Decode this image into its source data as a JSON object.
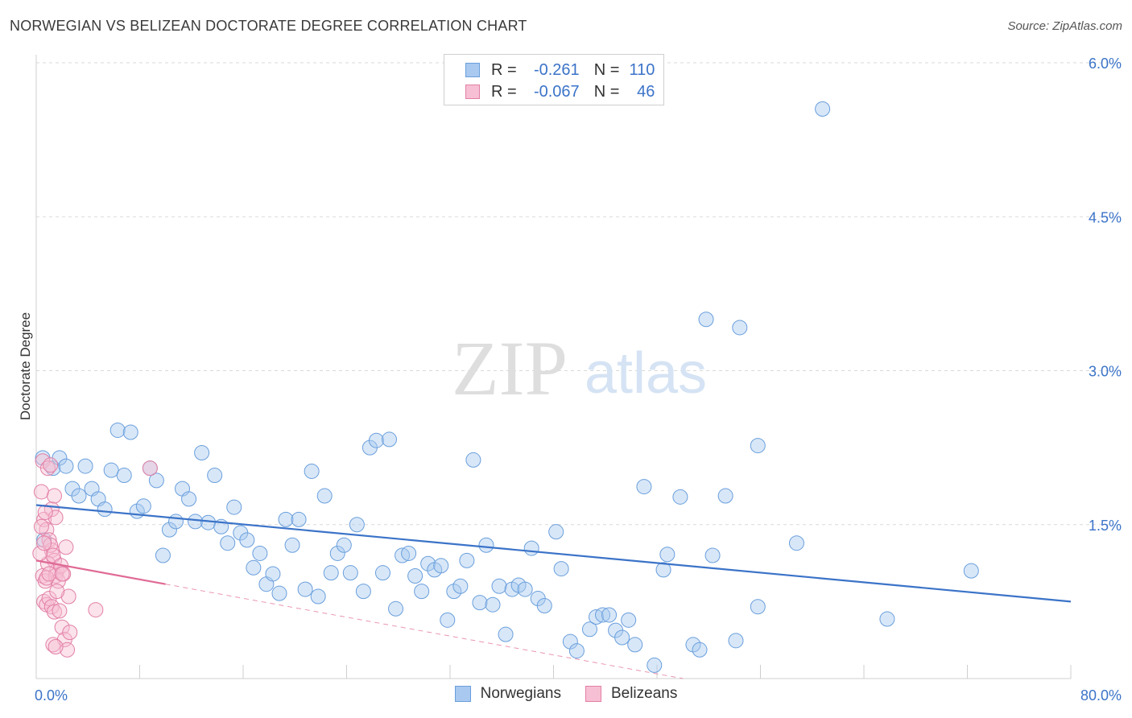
{
  "title": "NORWEGIAN VS BELIZEAN DOCTORATE DEGREE CORRELATION CHART",
  "source": "Source: ZipAtlas.com",
  "watermark": {
    "zip": "ZIP",
    "atlas": "atlas"
  },
  "legend": {
    "rows": [
      {
        "r_label": "R =",
        "r_value": "-0.261",
        "n_label": "N =",
        "n_value": "110",
        "color": "#a9c9f0",
        "border": "#6a9fdc"
      },
      {
        "r_label": "R =",
        "r_value": "-0.067",
        "n_label": "N =",
        "n_value": "46",
        "color": "#f7bfd3",
        "border": "#e27fa5"
      }
    ]
  },
  "bottom_legend": [
    {
      "label": "Norwegians",
      "color": "#a9c9f0",
      "border": "#6a9fdc"
    },
    {
      "label": "Belizeans",
      "color": "#f7bfd3",
      "border": "#e27fa5"
    }
  ],
  "colors": {
    "blue": "#3b73c8",
    "pink": "#e06a95",
    "grid": "#d9d9d9",
    "tick_text": "#3b73c8"
  },
  "chart_data": {
    "type": "scatter",
    "title": "NORWEGIAN VS BELIZEAN DOCTORATE DEGREE CORRELATION CHART",
    "xlabel": "",
    "ylabel": "Doctorate Degree",
    "xlim": [
      0,
      80
    ],
    "ylim": [
      0,
      6.0
    ],
    "x_tick_labels": [
      "0.0%",
      "80.0%"
    ],
    "y_tick_labels": [
      "1.5%",
      "3.0%",
      "4.5%",
      "6.0%"
    ],
    "y_ticks": [
      1.5,
      3.0,
      4.5,
      6.0
    ],
    "grid": true,
    "series": [
      {
        "name": "Norwegians",
        "points": [
          [
            0.5,
            2.15
          ],
          [
            1.3,
            2.05
          ],
          [
            1.8,
            2.15
          ],
          [
            2.3,
            2.07
          ],
          [
            2.8,
            1.85
          ],
          [
            3.3,
            1.78
          ],
          [
            3.8,
            2.07
          ],
          [
            4.3,
            1.85
          ],
          [
            4.8,
            1.75
          ],
          [
            5.3,
            1.65
          ],
          [
            5.8,
            2.03
          ],
          [
            6.3,
            2.42
          ],
          [
            6.8,
            1.98
          ],
          [
            7.3,
            2.4
          ],
          [
            7.8,
            1.63
          ],
          [
            8.3,
            1.68
          ],
          [
            8.8,
            2.05
          ],
          [
            9.3,
            1.93
          ],
          [
            9.8,
            1.2
          ],
          [
            10.3,
            1.45
          ],
          [
            10.8,
            1.53
          ],
          [
            11.3,
            1.85
          ],
          [
            11.8,
            1.75
          ],
          [
            12.3,
            1.53
          ],
          [
            12.8,
            2.2
          ],
          [
            13.3,
            1.52
          ],
          [
            13.8,
            1.98
          ],
          [
            14.3,
            1.48
          ],
          [
            14.8,
            1.32
          ],
          [
            15.3,
            1.67
          ],
          [
            15.8,
            1.42
          ],
          [
            16.3,
            1.35
          ],
          [
            16.8,
            1.08
          ],
          [
            17.3,
            1.22
          ],
          [
            17.8,
            0.92
          ],
          [
            18.3,
            1.02
          ],
          [
            18.8,
            0.83
          ],
          [
            19.3,
            1.55
          ],
          [
            19.8,
            1.3
          ],
          [
            20.3,
            1.55
          ],
          [
            20.8,
            0.87
          ],
          [
            21.3,
            2.02
          ],
          [
            21.8,
            0.8
          ],
          [
            22.3,
            1.78
          ],
          [
            22.8,
            1.03
          ],
          [
            23.3,
            1.22
          ],
          [
            23.8,
            1.3
          ],
          [
            24.3,
            1.03
          ],
          [
            24.8,
            1.5
          ],
          [
            25.3,
            0.85
          ],
          [
            25.8,
            2.25
          ],
          [
            26.3,
            2.32
          ],
          [
            26.8,
            1.03
          ],
          [
            27.3,
            2.33
          ],
          [
            27.8,
            0.68
          ],
          [
            28.3,
            1.2
          ],
          [
            28.8,
            1.22
          ],
          [
            29.3,
            1.0
          ],
          [
            29.8,
            0.85
          ],
          [
            30.3,
            1.12
          ],
          [
            30.8,
            1.06
          ],
          [
            31.3,
            1.1
          ],
          [
            31.8,
            0.57
          ],
          [
            32.3,
            0.85
          ],
          [
            32.8,
            0.9
          ],
          [
            33.3,
            1.15
          ],
          [
            33.8,
            2.13
          ],
          [
            34.3,
            0.74
          ],
          [
            34.8,
            1.3
          ],
          [
            35.3,
            0.72
          ],
          [
            35.8,
            0.9
          ],
          [
            36.3,
            0.43
          ],
          [
            36.8,
            0.87
          ],
          [
            37.3,
            0.91
          ],
          [
            37.8,
            0.87
          ],
          [
            38.3,
            1.27
          ],
          [
            38.8,
            0.78
          ],
          [
            39.3,
            0.71
          ],
          [
            40.2,
            1.43
          ],
          [
            40.6,
            1.07
          ],
          [
            41.3,
            0.36
          ],
          [
            41.8,
            0.27
          ],
          [
            42.8,
            0.48
          ],
          [
            43.3,
            0.6
          ],
          [
            43.8,
            0.62
          ],
          [
            44.3,
            0.62
          ],
          [
            44.8,
            0.47
          ],
          [
            45.3,
            0.4
          ],
          [
            45.8,
            0.57
          ],
          [
            46.3,
            0.33
          ],
          [
            47.0,
            1.87
          ],
          [
            47.8,
            0.13
          ],
          [
            48.5,
            1.06
          ],
          [
            48.8,
            1.21
          ],
          [
            49.8,
            1.77
          ],
          [
            50.8,
            0.33
          ],
          [
            51.3,
            0.28
          ],
          [
            51.8,
            3.5
          ],
          [
            52.3,
            1.2
          ],
          [
            53.3,
            1.78
          ],
          [
            54.1,
            0.37
          ],
          [
            54.4,
            3.42
          ],
          [
            55.8,
            0.7
          ],
          [
            55.8,
            2.27
          ],
          [
            58.8,
            1.32
          ],
          [
            60.8,
            5.55
          ],
          [
            65.8,
            0.58
          ],
          [
            72.3,
            1.05
          ],
          [
            0.6,
            1.35
          ]
        ]
      },
      {
        "name": "Belizeans",
        "points": [
          [
            0.4,
            1.82
          ],
          [
            0.6,
            1.55
          ],
          [
            0.8,
            1.45
          ],
          [
            1.0,
            1.35
          ],
          [
            1.2,
            1.25
          ],
          [
            1.4,
            1.15
          ],
          [
            1.6,
            1.05
          ],
          [
            0.5,
            1.0
          ],
          [
            0.7,
            0.95
          ],
          [
            0.9,
            1.12
          ],
          [
            1.1,
            1.3
          ],
          [
            1.3,
            1.2
          ],
          [
            1.5,
            1.0
          ],
          [
            1.7,
            0.95
          ],
          [
            1.9,
            1.1
          ],
          [
            2.1,
            1.02
          ],
          [
            2.3,
            1.28
          ],
          [
            2.5,
            0.8
          ],
          [
            0.6,
            0.75
          ],
          [
            0.8,
            0.72
          ],
          [
            1.0,
            0.78
          ],
          [
            1.2,
            0.7
          ],
          [
            1.4,
            0.65
          ],
          [
            1.6,
            0.85
          ],
          [
            1.8,
            0.66
          ],
          [
            2.0,
            0.5
          ],
          [
            2.2,
            0.38
          ],
          [
            2.4,
            0.28
          ],
          [
            2.6,
            0.45
          ],
          [
            1.3,
            0.33
          ],
          [
            1.5,
            0.31
          ],
          [
            1.2,
            1.65
          ],
          [
            1.5,
            1.57
          ],
          [
            1.4,
            1.78
          ],
          [
            0.5,
            2.12
          ],
          [
            0.9,
            2.05
          ],
          [
            1.1,
            2.08
          ],
          [
            0.7,
            1.62
          ],
          [
            4.6,
            0.67
          ],
          [
            8.8,
            2.05
          ],
          [
            0.3,
            1.22
          ],
          [
            0.4,
            1.48
          ],
          [
            0.6,
            1.32
          ],
          [
            0.8,
            0.98
          ],
          [
            1.0,
            1.02
          ],
          [
            2.0,
            1.02
          ]
        ]
      }
    ],
    "trend_lines": [
      {
        "series": "Norwegians",
        "x": [
          0,
          80
        ],
        "y": [
          1.69,
          0.75
        ]
      },
      {
        "series": "Belizeans",
        "x": [
          0,
          10
        ],
        "y": [
          1.15,
          0.92
        ],
        "dashed_extension": {
          "x": [
            10,
            50
          ],
          "y": [
            0.92,
            0.0
          ]
        }
      }
    ]
  }
}
